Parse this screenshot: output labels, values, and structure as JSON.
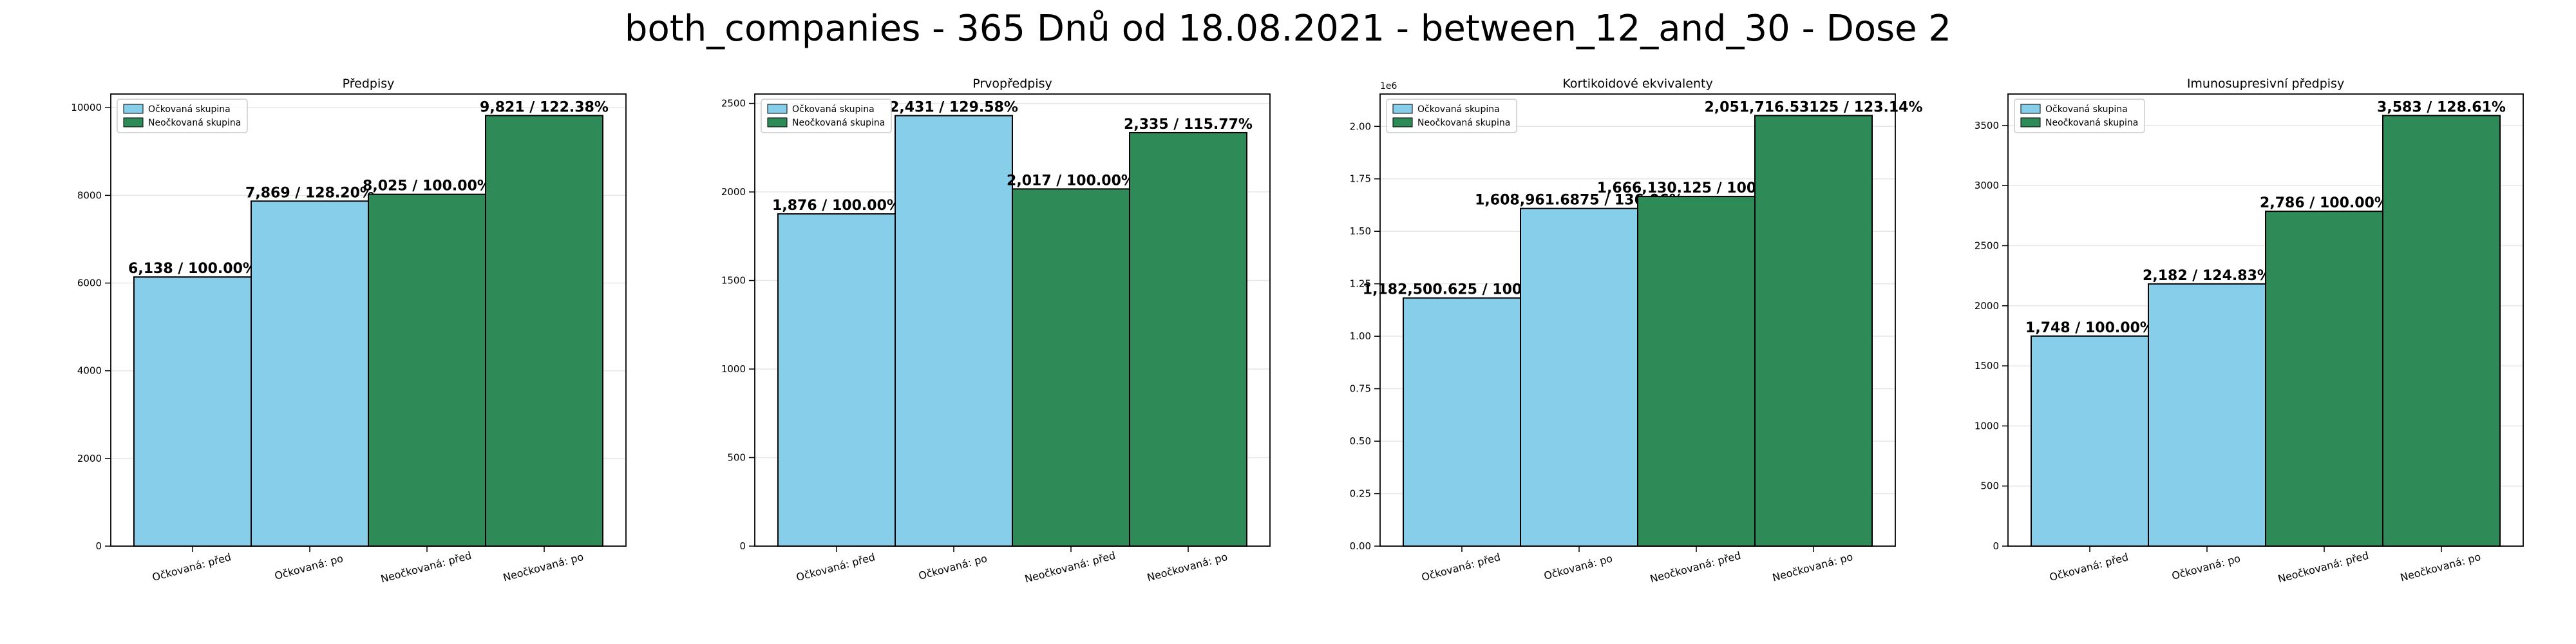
{
  "suptitle": "both_companies - 365 Dnů od 18.08.2021 - between_12_and_30 - Dose 2",
  "colors": {
    "vaccinated": "#87ceeb",
    "unvaccinated": "#2e8b57",
    "edge": "#000000"
  },
  "legend": {
    "vaccinated": "Očkovaná skupina",
    "unvaccinated": "Neočkovaná skupina"
  },
  "chart_data": [
    {
      "type": "bar",
      "title": "Předpisy",
      "categories": [
        "Očkovaná: před",
        "Očkovaná: po",
        "Neočkovaná: před",
        "Neočkovaná: po"
      ],
      "groups": [
        "vaccinated",
        "vaccinated",
        "unvaccinated",
        "unvaccinated"
      ],
      "values": [
        6138,
        7869,
        8025,
        9821
      ],
      "bar_labels": [
        "6,138 / 100.00%",
        "7,869 / 128.20%",
        "8,025 / 100.00%",
        "9,821 / 122.38%"
      ],
      "ylim": [
        0,
        10312
      ],
      "yticks": [
        0,
        2000,
        4000,
        6000,
        8000,
        10000
      ],
      "ytick_labels": [
        "0",
        "2000",
        "4000",
        "6000",
        "8000",
        "10000"
      ],
      "y_offset_text": "",
      "legend_position": "upper left",
      "grid": true
    },
    {
      "type": "bar",
      "title": "Prvopředpisy",
      "categories": [
        "Očkovaná: před",
        "Očkovaná: po",
        "Neočkovaná: před",
        "Neočkovaná: po"
      ],
      "groups": [
        "vaccinated",
        "vaccinated",
        "unvaccinated",
        "unvaccinated"
      ],
      "values": [
        1876,
        2431,
        2017,
        2335
      ],
      "bar_labels": [
        "1,876 / 100.00%",
        "2,431 / 129.58%",
        "2,017 / 100.00%",
        "2,335 / 115.77%"
      ],
      "ylim": [
        0,
        2553
      ],
      "yticks": [
        0,
        500,
        1000,
        1500,
        2000,
        2500
      ],
      "ytick_labels": [
        "0",
        "500",
        "1000",
        "1500",
        "2000",
        "2500"
      ],
      "y_offset_text": "",
      "legend_position": "upper left",
      "grid": true
    },
    {
      "type": "bar",
      "title": "Kortikoidové ekvivalenty",
      "categories": [
        "Očkovaná: před",
        "Očkovaná: po",
        "Neočkovaná: před",
        "Neočkovaná: po"
      ],
      "groups": [
        "vaccinated",
        "vaccinated",
        "unvaccinated",
        "unvaccinated"
      ],
      "values": [
        1182500.625,
        1608961.6875,
        1666130.125,
        2051716.53125
      ],
      "bar_labels": [
        "1,182,500.625 / 100.00%",
        "1,608,961.6875 / 136.06%",
        "1,666,130.125 / 100.00%",
        "2,051,716.53125 / 123.14%"
      ],
      "ylim": [
        0,
        2154302
      ],
      "yticks": [
        0,
        250000,
        500000,
        750000,
        1000000,
        1250000,
        1500000,
        1750000,
        2000000
      ],
      "ytick_labels": [
        "0.00",
        "0.25",
        "0.50",
        "0.75",
        "1.00",
        "1.25",
        "1.50",
        "1.75",
        "2.00"
      ],
      "y_offset_text": "1e6",
      "legend_position": "upper left",
      "grid": true
    },
    {
      "type": "bar",
      "title": "Imunosupresivní předpisy",
      "categories": [
        "Očkovaná: před",
        "Očkovaná: po",
        "Neočkovaná: před",
        "Neočkovaná: po"
      ],
      "groups": [
        "vaccinated",
        "vaccinated",
        "unvaccinated",
        "unvaccinated"
      ],
      "values": [
        1748,
        2182,
        2786,
        3583
      ],
      "bar_labels": [
        "1,748 / 100.00%",
        "2,182 / 124.83%",
        "2,786 / 100.00%",
        "3,583 / 128.61%"
      ],
      "ylim": [
        0,
        3762
      ],
      "yticks": [
        0,
        500,
        1000,
        1500,
        2000,
        2500,
        3000,
        3500
      ],
      "ytick_labels": [
        "0",
        "500",
        "1000",
        "1500",
        "2000",
        "2500",
        "3000",
        "3500"
      ],
      "y_offset_text": "",
      "legend_position": "upper left",
      "grid": true
    }
  ]
}
